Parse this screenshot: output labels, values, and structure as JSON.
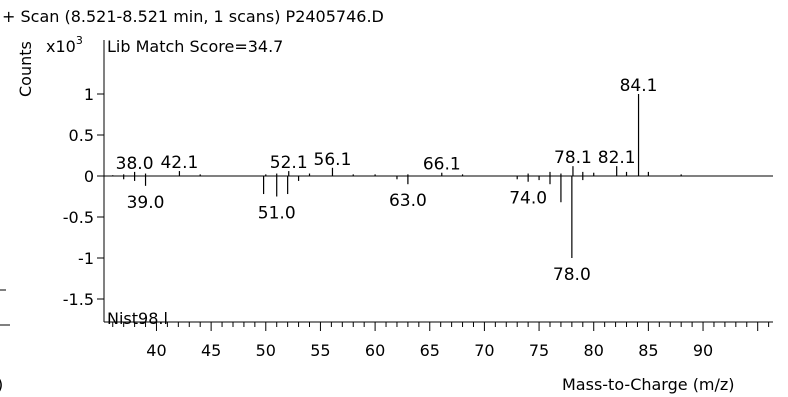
{
  "header": {
    "scan_title": "+ Scan (8.521-8.521 min, 1 scans) P2405746.D",
    "score_label": "Lib Match Score=34.7",
    "library_label": "Nist98.l",
    "y_multiplier_base": "x10",
    "y_multiplier_exp": "3"
  },
  "chart_data": {
    "type": "bar",
    "title": "+ Scan (8.521-8.521 min, 1 scans) P2405746.D",
    "xlabel": "Mass-to-Charge (m/z)",
    "ylabel": "Counts",
    "y_scale_note": "x10^3",
    "xlim": [
      35.2,
      96.4
    ],
    "ylim": [
      -1.55,
      1.22
    ],
    "x_ticks": [
      "40",
      "45",
      "50",
      "55",
      "60",
      "65",
      "70",
      "75",
      "80",
      "85",
      "90"
    ],
    "x_tick_values": [
      40,
      45,
      50,
      55,
      60,
      65,
      70,
      75,
      80,
      85,
      90
    ],
    "y_ticks": [
      "1",
      "0.5",
      "0",
      "-0.5",
      "-1",
      "-1.5"
    ],
    "y_tick_values": [
      1,
      0.5,
      0,
      -0.5,
      -1,
      -1.5
    ],
    "grid": false,
    "series": [
      {
        "name": "P2405746.D",
        "x": [
          36.0,
          37.0,
          38.0,
          39.0,
          42.1,
          44.0,
          50.0,
          51.0,
          52.1,
          54.0,
          56.1,
          58.0,
          60.0,
          63.0,
          66.1,
          68.0,
          74.0,
          76.0,
          77.0,
          78.1,
          79.0,
          80.0,
          82.1,
          83.0,
          84.1,
          85.0,
          88.0
        ],
        "values": [
          0.01,
          0.02,
          0.05,
          0.03,
          0.06,
          0.02,
          0.02,
          0.03,
          0.06,
          0.03,
          0.1,
          0.02,
          0.02,
          0.02,
          0.04,
          0.02,
          0.03,
          0.05,
          0.03,
          0.12,
          0.05,
          0.04,
          0.12,
          0.05,
          1.0,
          0.05,
          0.02
        ]
      },
      {
        "name": "Nist98.l",
        "x": [
          37.0,
          38.0,
          39.0,
          49.8,
          51.0,
          52.0,
          53.0,
          62.0,
          63.0,
          73.0,
          74.0,
          75.0,
          76.0,
          77.0,
          78.0,
          79.0
        ],
        "values": [
          -0.04,
          -0.06,
          -0.12,
          -0.22,
          -0.25,
          -0.22,
          -0.06,
          -0.04,
          -0.1,
          -0.04,
          -0.07,
          -0.05,
          -0.1,
          -0.32,
          -1.0,
          -0.05
        ]
      }
    ],
    "peak_labels": [
      {
        "text": "38.0",
        "x": 38.0,
        "y": 0.05
      },
      {
        "text": "42.1",
        "x": 42.1,
        "y": 0.06
      },
      {
        "text": "52.1",
        "x": 52.1,
        "y": 0.06
      },
      {
        "text": "56.1",
        "x": 56.1,
        "y": 0.1
      },
      {
        "text": "66.1",
        "x": 66.1,
        "y": 0.04
      },
      {
        "text": "78.1",
        "x": 78.1,
        "y": 0.12
      },
      {
        "text": "82.1",
        "x": 82.1,
        "y": 0.12
      },
      {
        "text": "84.1",
        "x": 84.1,
        "y": 1.0
      },
      {
        "text": "39.0",
        "x": 39.0,
        "y": -0.12
      },
      {
        "text": "51.0",
        "x": 51.0,
        "y": -0.25
      },
      {
        "text": "63.0",
        "x": 63.0,
        "y": -0.1
      },
      {
        "text": "74.0",
        "x": 74.0,
        "y": -0.07
      },
      {
        "text": "78.0",
        "x": 78.0,
        "y": -1.0
      }
    ]
  }
}
